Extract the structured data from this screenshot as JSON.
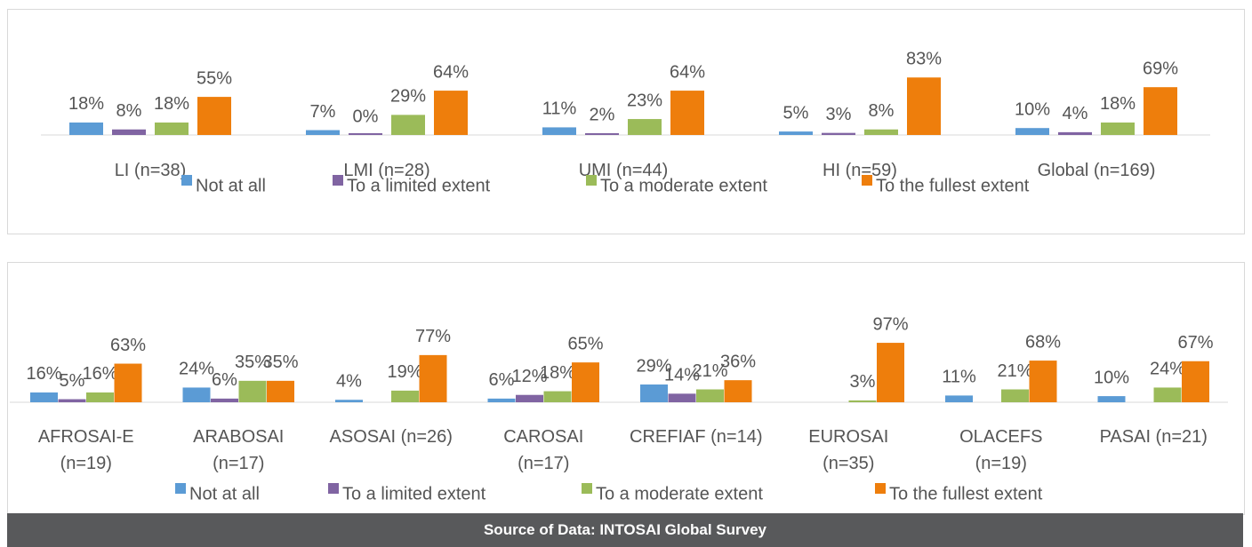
{
  "chart_data": [
    {
      "type": "bar",
      "categories": [
        "LI (n=38)",
        "LMI (n=28)",
        "UMI (n=44)",
        "HI (n=59)",
        "Global (n=169)"
      ],
      "ylim": [
        0,
        100
      ],
      "series": [
        {
          "name": "Not at all",
          "color": "#5b9bd5",
          "values": [
            18,
            7,
            11,
            5,
            10
          ],
          "value_labels": [
            "18%",
            "7%",
            "11%",
            "5%",
            "10%"
          ]
        },
        {
          "name": "To a limited extent",
          "color": "#8064a2",
          "values": [
            8,
            0,
            2,
            3,
            4
          ],
          "value_labels": [
            "8%",
            "0%",
            "2%",
            "3%",
            "4%"
          ]
        },
        {
          "name": "To a moderate extent",
          "color": "#9bbb59",
          "values": [
            18,
            29,
            23,
            8,
            18
          ],
          "value_labels": [
            "18%",
            "29%",
            "23%",
            "8%",
            "18%"
          ]
        },
        {
          "name": "To the fullest extent",
          "color": "#ee7e0c",
          "values": [
            55,
            64,
            64,
            83,
            69
          ],
          "value_labels": [
            "55%",
            "64%",
            "64%",
            "83%",
            "69%"
          ]
        }
      ]
    },
    {
      "type": "bar",
      "categories": [
        "AFROSAI-E\n(n=19)",
        "ARABOSAI\n(n=17)",
        "ASOSAI (n=26)",
        "CAROSAI\n(n=17)",
        "CREFIAF (n=14)",
        "EUROSAI\n(n=35)",
        "OLACEFS\n(n=19)",
        "PASAI (n=21)"
      ],
      "ylim": [
        0,
        100
      ],
      "series": [
        {
          "name": "Not at all",
          "color": "#5b9bd5",
          "values": [
            16,
            24,
            4,
            6,
            29,
            null,
            11,
            10
          ],
          "value_labels": [
            "16%",
            "24%",
            "4%",
            "6%",
            "29%",
            null,
            "11%",
            "10%"
          ]
        },
        {
          "name": "To a limited extent",
          "color": "#8064a2",
          "values": [
            5,
            6,
            null,
            12,
            14,
            null,
            null,
            null
          ],
          "value_labels": [
            "5%",
            "6%",
            null,
            "12%",
            "14%",
            null,
            null,
            null
          ]
        },
        {
          "name": "To a moderate extent",
          "color": "#9bbb59",
          "values": [
            16,
            35,
            19,
            18,
            21,
            3,
            21,
            24
          ],
          "value_labels": [
            "16%",
            "35%",
            "19%",
            "18%",
            "21%",
            "3%",
            "21%",
            "24%"
          ]
        },
        {
          "name": "To the fullest extent",
          "color": "#ee7e0c",
          "values": [
            63,
            35,
            77,
            65,
            36,
            97,
            68,
            67
          ],
          "value_labels": [
            "63%",
            "35%",
            "77%",
            "65%",
            "36%",
            "97%",
            "68%",
            "67%"
          ]
        }
      ]
    }
  ],
  "source": "Source of Data: INTOSAI Global Survey"
}
